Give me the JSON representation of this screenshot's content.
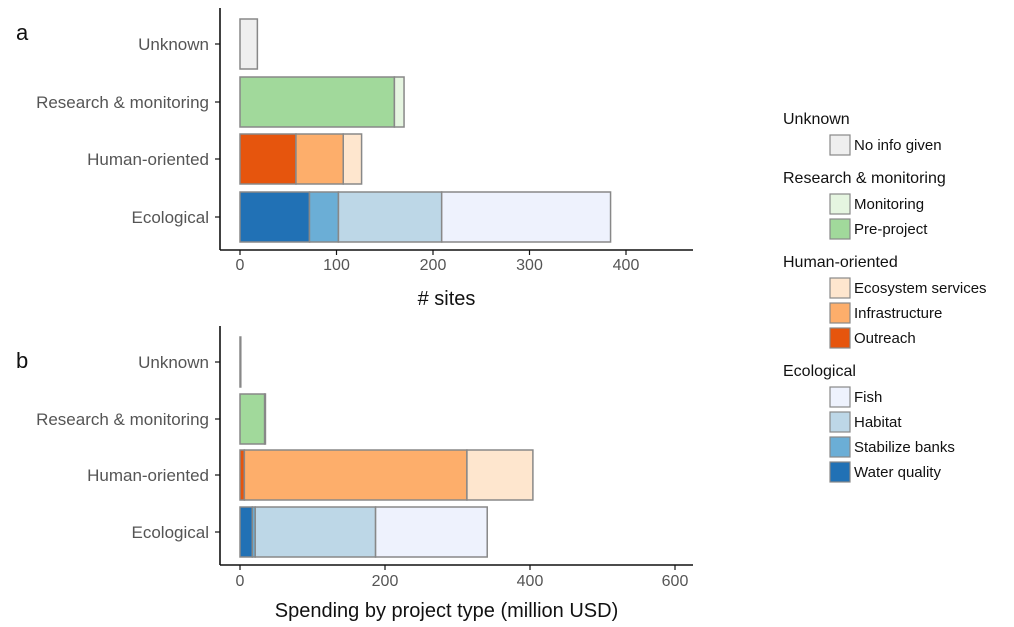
{
  "legend": {
    "groups": [
      {
        "title": "Unknown",
        "items": [
          {
            "label": "No info given",
            "color": "#efefef"
          }
        ]
      },
      {
        "title": "Research & monitoring",
        "items": [
          {
            "label": "Monitoring",
            "color": "#e5f5e0"
          },
          {
            "label": "Pre-project",
            "color": "#a1d99b"
          }
        ]
      },
      {
        "title": "Human-oriented",
        "items": [
          {
            "label": "Ecosystem services",
            "color": "#fee6ce"
          },
          {
            "label": "Infrastructure",
            "color": "#fdae6b"
          },
          {
            "label": "Outreach",
            "color": "#e6550d"
          }
        ]
      },
      {
        "title": "Ecological",
        "items": [
          {
            "label": "Fish",
            "color": "#eef2fd"
          },
          {
            "label": "Habitat",
            "color": "#bdd7e7"
          },
          {
            "label": "Stabilize banks",
            "color": "#6baed6"
          },
          {
            "label": "Water quality",
            "color": "#2171b5"
          }
        ]
      }
    ]
  },
  "chart_data": [
    {
      "panel": "a",
      "type": "bar",
      "orientation": "horizontal",
      "stacked": true,
      "categories": [
        "Unknown",
        "Research & monitoring",
        "Human-oriented",
        "Ecological"
      ],
      "xlabel": "# sites",
      "xlim": [
        -20,
        470
      ],
      "xticks": [
        0,
        100,
        200,
        300,
        400
      ],
      "bars": [
        {
          "category": "Unknown",
          "segments": [
            {
              "name": "No info given",
              "value": 18,
              "color": "#efefef"
            }
          ]
        },
        {
          "category": "Research & monitoring",
          "segments": [
            {
              "name": "Pre-project",
              "value": 160,
              "color": "#a1d99b"
            },
            {
              "name": "Monitoring",
              "value": 10,
              "color": "#e5f5e0"
            }
          ]
        },
        {
          "category": "Human-oriented",
          "segments": [
            {
              "name": "Outreach",
              "value": 58,
              "color": "#e6550d"
            },
            {
              "name": "Infrastructure",
              "value": 49,
              "color": "#fdae6b"
            },
            {
              "name": "Ecosystem services",
              "value": 19,
              "color": "#fee6ce"
            }
          ]
        },
        {
          "category": "Ecological",
          "segments": [
            {
              "name": "Water quality",
              "value": 72,
              "color": "#2171b5"
            },
            {
              "name": "Stabilize banks",
              "value": 30,
              "color": "#6baed6"
            },
            {
              "name": "Habitat",
              "value": 107,
              "color": "#bdd7e7"
            },
            {
              "name": "Fish",
              "value": 175,
              "color": "#eef2fd"
            }
          ]
        }
      ]
    },
    {
      "panel": "b",
      "type": "bar",
      "orientation": "horizontal",
      "stacked": true,
      "categories": [
        "Unknown",
        "Research & monitoring",
        "Human-oriented",
        "Ecological"
      ],
      "xlabel": "Spending by project type (million USD)",
      "xlim": [
        -20,
        630
      ],
      "xticks": [
        0,
        200,
        400,
        600
      ],
      "bars": [
        {
          "category": "Unknown",
          "segments": [
            {
              "name": "No info given",
              "value": 1,
              "color": "#efefef"
            }
          ]
        },
        {
          "category": "Research & monitoring",
          "segments": [
            {
              "name": "Pre-project",
              "value": 34,
              "color": "#a1d99b"
            },
            {
              "name": "Monitoring",
              "value": 1,
              "color": "#e5f5e0"
            }
          ]
        },
        {
          "category": "Human-oriented",
          "segments": [
            {
              "name": "Outreach",
              "value": 6,
              "color": "#e6550d"
            },
            {
              "name": "Infrastructure",
              "value": 307,
              "color": "#fdae6b"
            },
            {
              "name": "Ecosystem services",
              "value": 91,
              "color": "#fee6ce"
            }
          ]
        },
        {
          "category": "Ecological",
          "segments": [
            {
              "name": "Water quality",
              "value": 17,
              "color": "#2171b5"
            },
            {
              "name": "Stabilize banks",
              "value": 4,
              "color": "#6baed6"
            },
            {
              "name": "Habitat",
              "value": 166,
              "color": "#bdd7e7"
            },
            {
              "name": "Fish",
              "value": 154,
              "color": "#eef2fd"
            }
          ]
        }
      ]
    }
  ]
}
